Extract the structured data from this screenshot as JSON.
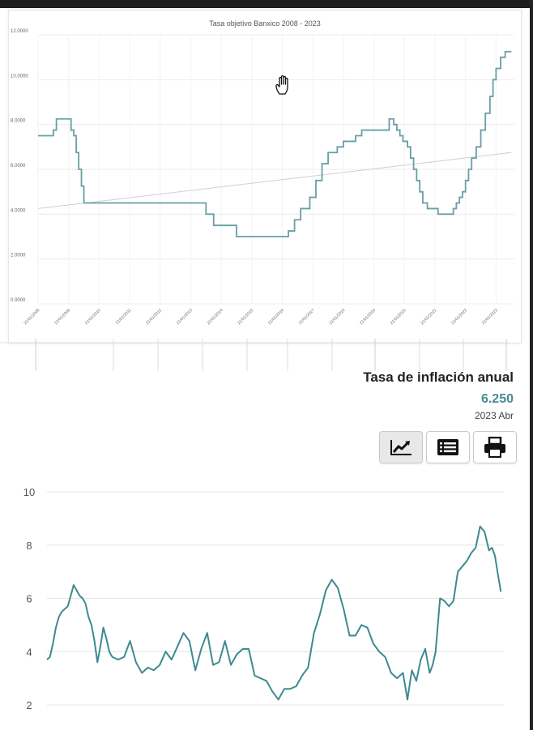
{
  "chart_data": [
    {
      "type": "line",
      "title": "Tasa objetivo Banxico 2008 - 2023",
      "y_ticks": [
        "0.0000",
        "2.0000",
        "4.0000",
        "6.0000",
        "8.0000",
        "10.0000",
        "12.0000"
      ],
      "ylim": [
        0,
        12
      ],
      "xlim": [
        2008,
        2023.6
      ],
      "x_tick_labels": [
        "21/01/2008",
        "21/01/2009",
        "21/01/2010",
        "21/01/2011",
        "21/01/2012",
        "21/01/2013",
        "21/01/2014",
        "21/01/2015",
        "21/01/2016",
        "21/01/2017",
        "21/01/2018",
        "21/01/2019",
        "21/01/2020",
        "21/01/2021",
        "21/01/2022",
        "21/01/2023"
      ],
      "x_tick_years": [
        2008,
        2009,
        2010,
        2011,
        2012,
        2013,
        2014,
        2015,
        2016,
        2017,
        2018,
        2019,
        2020,
        2021,
        2022,
        2023
      ],
      "grid": true,
      "series": [
        {
          "line_color": "#6a9ea5",
          "x": [
            2008.0,
            2008.4,
            2008.5,
            2008.6,
            2009.0,
            2009.08,
            2009.17,
            2009.25,
            2009.33,
            2009.42,
            2009.5,
            2010.0,
            2013.3,
            2013.5,
            2013.75,
            2014.5,
            2016.0,
            2016.2,
            2016.4,
            2016.6,
            2016.9,
            2017.1,
            2017.3,
            2017.5,
            2017.8,
            2018.0,
            2018.4,
            2018.6,
            2018.9,
            2019.5,
            2019.65,
            2019.75,
            2019.85,
            2019.95,
            2020.1,
            2020.2,
            2020.3,
            2020.4,
            2020.5,
            2020.6,
            2020.75,
            2020.9,
            2021.1,
            2021.5,
            2021.6,
            2021.7,
            2021.8,
            2021.9,
            2022.0,
            2022.1,
            2022.2,
            2022.35,
            2022.5,
            2022.65,
            2022.8,
            2022.9,
            2023.0,
            2023.15,
            2023.3,
            2023.4,
            2023.5
          ],
          "y": [
            7.5,
            7.5,
            7.75,
            8.25,
            8.25,
            7.75,
            7.5,
            6.75,
            6.0,
            5.25,
            4.5,
            4.5,
            4.5,
            4.0,
            3.5,
            3.0,
            3.0,
            3.25,
            3.75,
            4.25,
            4.75,
            5.5,
            6.25,
            6.75,
            7.0,
            7.25,
            7.5,
            7.75,
            7.75,
            8.25,
            8.0,
            7.75,
            7.5,
            7.25,
            7.0,
            6.5,
            6.0,
            5.5,
            5.0,
            4.5,
            4.25,
            4.25,
            4.0,
            4.0,
            4.25,
            4.5,
            4.75,
            5.0,
            5.5,
            6.0,
            6.5,
            7.0,
            7.75,
            8.5,
            9.25,
            10.0,
            10.5,
            11.0,
            11.25,
            11.25,
            11.25
          ]
        },
        {
          "line_color": "#d0d0d0",
          "x": [
            2008.0,
            2023.5
          ],
          "y": [
            4.25,
            6.75
          ]
        }
      ]
    },
    {
      "type": "line",
      "title": "Tasa de inflación anual",
      "y_ticks": [
        "2",
        "4",
        "6",
        "8",
        "10"
      ],
      "ylim": [
        2,
        10
      ],
      "xlim": [
        2008,
        2023.4
      ],
      "grid": true,
      "series": [
        {
          "line_color": "#3e8a90",
          "x": [
            2008.0,
            2008.1,
            2008.2,
            2008.3,
            2008.4,
            2008.5,
            2008.6,
            2008.7,
            2008.8,
            2008.9,
            2009.0,
            2009.1,
            2009.2,
            2009.3,
            2009.4,
            2009.5,
            2009.6,
            2009.7,
            2009.8,
            2009.9,
            2010.0,
            2010.1,
            2010.2,
            2010.4,
            2010.6,
            2010.8,
            2011.0,
            2011.2,
            2011.4,
            2011.6,
            2011.8,
            2012.0,
            2012.2,
            2012.4,
            2012.6,
            2012.8,
            2013.0,
            2013.2,
            2013.4,
            2013.6,
            2013.8,
            2014.0,
            2014.2,
            2014.4,
            2014.6,
            2014.8,
            2015.0,
            2015.2,
            2015.4,
            2015.6,
            2015.8,
            2016.0,
            2016.2,
            2016.4,
            2016.6,
            2016.8,
            2017.0,
            2017.2,
            2017.4,
            2017.6,
            2017.8,
            2018.0,
            2018.2,
            2018.4,
            2018.6,
            2018.8,
            2019.0,
            2019.2,
            2019.4,
            2019.6,
            2019.8,
            2020.0,
            2020.15,
            2020.3,
            2020.45,
            2020.6,
            2020.75,
            2020.9,
            2021.0,
            2021.1,
            2021.25,
            2021.4,
            2021.55,
            2021.7,
            2021.85,
            2022.0,
            2022.15,
            2022.3,
            2022.45,
            2022.6,
            2022.75,
            2022.9,
            2023.0,
            2023.1,
            2023.2,
            2023.3
          ],
          "y": [
            3.7,
            3.8,
            4.3,
            4.9,
            5.3,
            5.5,
            5.6,
            5.7,
            6.1,
            6.5,
            6.3,
            6.1,
            6.0,
            5.8,
            5.3,
            5.0,
            4.4,
            3.6,
            4.2,
            4.9,
            4.5,
            4.0,
            3.8,
            3.7,
            3.8,
            4.4,
            3.6,
            3.2,
            3.4,
            3.3,
            3.5,
            4.0,
            3.7,
            4.2,
            4.7,
            4.4,
            3.3,
            4.1,
            4.7,
            3.5,
            3.6,
            4.4,
            3.5,
            3.9,
            4.1,
            4.1,
            3.1,
            3.0,
            2.9,
            2.5,
            2.2,
            2.6,
            2.6,
            2.7,
            3.1,
            3.4,
            4.7,
            5.4,
            6.3,
            6.7,
            6.4,
            5.6,
            4.6,
            4.6,
            5.0,
            4.9,
            4.3,
            4.0,
            3.8,
            3.2,
            3.0,
            3.2,
            2.2,
            3.3,
            2.9,
            3.7,
            4.1,
            3.2,
            3.5,
            4.0,
            6.0,
            5.9,
            5.7,
            5.9,
            7.0,
            7.2,
            7.4,
            7.7,
            7.9,
            8.7,
            8.5,
            7.8,
            7.9,
            7.6,
            6.9,
            6.25
          ]
        }
      ]
    }
  ],
  "indicator": {
    "title": "Tasa de inflación anual",
    "value": "6.250",
    "date": "2023 Abr"
  },
  "toolbar": {
    "buttons": [
      {
        "icon": "line-chart-icon",
        "active": true
      },
      {
        "icon": "table-list-icon",
        "active": false
      },
      {
        "icon": "printer-icon",
        "active": false
      }
    ]
  },
  "cursor": {
    "icon": "hand-cursor-icon"
  },
  "colors": {
    "rate_line": "#6a9ea5",
    "trend_line": "#d0d0d0",
    "inflation_line": "#3e8a90",
    "indicator_value": "#4a8a96"
  }
}
